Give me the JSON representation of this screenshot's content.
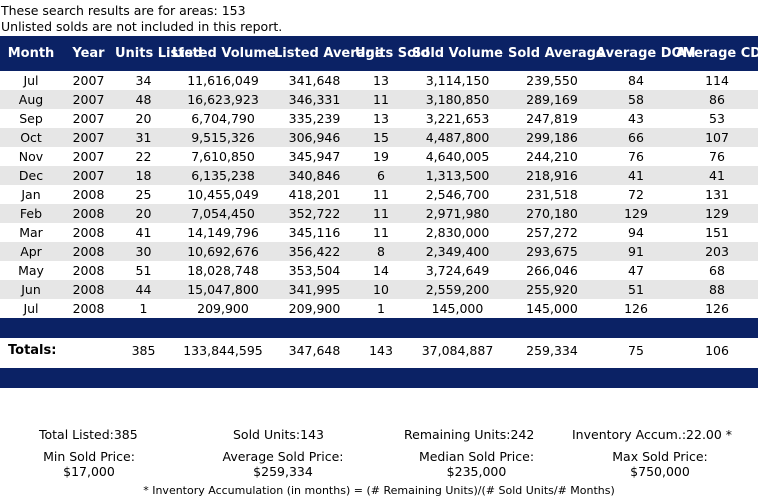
{
  "intro": {
    "line1": "These search results are for areas: 153",
    "line2": "Unlisted solds are not included in this report."
  },
  "table": {
    "headers": [
      "Month",
      "Year",
      "Units Listed",
      "Listed Volume",
      "Listed Average",
      "Units Sold",
      "Sold Volume",
      "Sold Average",
      "Average DOM",
      "Average CDOM"
    ],
    "rows": [
      [
        "Jul",
        "2007",
        "34",
        "11,616,049",
        "341,648",
        "13",
        "3,114,150",
        "239,550",
        "84",
        "114"
      ],
      [
        "Aug",
        "2007",
        "48",
        "16,623,923",
        "346,331",
        "11",
        "3,180,850",
        "289,169",
        "58",
        "86"
      ],
      [
        "Sep",
        "2007",
        "20",
        "6,704,790",
        "335,239",
        "13",
        "3,221,653",
        "247,819",
        "43",
        "53"
      ],
      [
        "Oct",
        "2007",
        "31",
        "9,515,326",
        "306,946",
        "15",
        "4,487,800",
        "299,186",
        "66",
        "107"
      ],
      [
        "Nov",
        "2007",
        "22",
        "7,610,850",
        "345,947",
        "19",
        "4,640,005",
        "244,210",
        "76",
        "76"
      ],
      [
        "Dec",
        "2007",
        "18",
        "6,135,238",
        "340,846",
        "6",
        "1,313,500",
        "218,916",
        "41",
        "41"
      ],
      [
        "Jan",
        "2008",
        "25",
        "10,455,049",
        "418,201",
        "11",
        "2,546,700",
        "231,518",
        "72",
        "131"
      ],
      [
        "Feb",
        "2008",
        "20",
        "7,054,450",
        "352,722",
        "11",
        "2,971,980",
        "270,180",
        "129",
        "129"
      ],
      [
        "Mar",
        "2008",
        "41",
        "14,149,796",
        "345,116",
        "11",
        "2,830,000",
        "257,272",
        "94",
        "151"
      ],
      [
        "Apr",
        "2008",
        "30",
        "10,692,676",
        "356,422",
        "8",
        "2,349,400",
        "293,675",
        "91",
        "203"
      ],
      [
        "May",
        "2008",
        "51",
        "18,028,748",
        "353,504",
        "14",
        "3,724,649",
        "266,046",
        "47",
        "68"
      ],
      [
        "Jun",
        "2008",
        "44",
        "15,047,800",
        "341,995",
        "10",
        "2,559,200",
        "255,920",
        "51",
        "88"
      ],
      [
        "Jul",
        "2008",
        "1",
        "209,900",
        "209,900",
        "1",
        "145,000",
        "145,000",
        "126",
        "126"
      ]
    ],
    "totals": {
      "label": "Totals:",
      "values": [
        "385",
        "133,844,595",
        "347,648",
        "143",
        "37,084,887",
        "259,334",
        "75",
        "106"
      ]
    }
  },
  "summary": {
    "total_listed": "Total Listed:385",
    "sold_units": "Sold Units:143",
    "remaining_units": "Remaining Units:242",
    "inventory_accum": "Inventory Accum.:22.00 *",
    "min_sold_label": "Min Sold Price:",
    "min_sold_value": "$17,000",
    "avg_sold_label": "Average Sold Price:",
    "avg_sold_value": "$259,334",
    "median_sold_label": "Median Sold Price:",
    "median_sold_value": "$235,000",
    "max_sold_label": "Max Sold Price:",
    "max_sold_value": "$750,000"
  },
  "footnote": "* Inventory Accumulation (in months) = (# Remaining Units)/(# Sold Units/# Months)"
}
